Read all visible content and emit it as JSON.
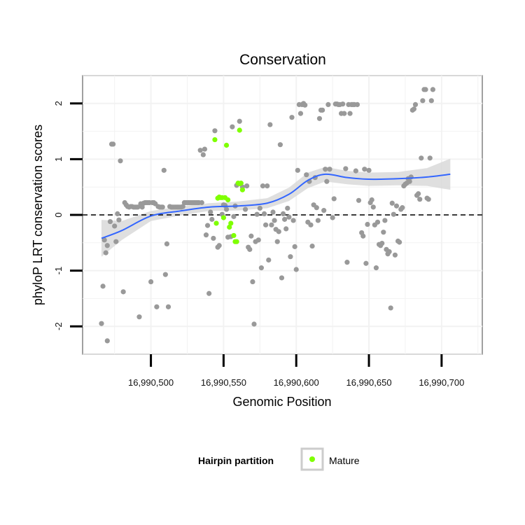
{
  "chart_data": {
    "type": "scatter",
    "title": "Conservation",
    "xlabel": "Genomic Position",
    "ylabel": "phyloP LRT conservation scores",
    "xlim": [
      16990453,
      16990728
    ],
    "ylim": [
      -2.5,
      2.5
    ],
    "x_ticks": [
      16990500,
      16990550,
      16990600,
      16990650,
      16990700
    ],
    "x_tick_labels": [
      "16,990,500",
      "16,990,550",
      "16,990,600",
      "16,990,650",
      "16,990,700"
    ],
    "y_ticks": [
      -2,
      -1,
      0,
      1,
      2
    ],
    "y_tick_labels": [
      "-2",
      "-1",
      "0",
      "1",
      "2"
    ],
    "reference_line": {
      "y": 0,
      "style": "dashed"
    },
    "grid": true,
    "colors": {
      "points": "#999999",
      "mature": "#7FFF00",
      "smooth": "#3366FF",
      "ribbon": "#d9d9d9",
      "reference": "#000000",
      "panel_border": "#808080",
      "grid": "#f2f2f2"
    },
    "legend": {
      "title": "Hairpin partition",
      "placement": "bottom",
      "entries": [
        "Mature"
      ]
    },
    "series": [
      {
        "name": "",
        "points": [
          [
            16990466,
            -1.95
          ],
          [
            16990467,
            -1.28
          ],
          [
            16990468,
            -0.45
          ],
          [
            16990469,
            -0.68
          ],
          [
            16990470,
            -2.26
          ],
          [
            16990470,
            -0.55
          ],
          [
            16990472,
            -0.12
          ],
          [
            16990473,
            1.27
          ],
          [
            16990474,
            1.27
          ],
          [
            16990475,
            -0.2
          ],
          [
            16990476,
            -0.48
          ],
          [
            16990477,
            0.02
          ],
          [
            16990478,
            -0.09
          ],
          [
            16990479,
            0.97
          ],
          [
            16990481,
            -1.38
          ],
          [
            16990482,
            0.22
          ],
          [
            16990483,
            0.18
          ],
          [
            16990484,
            0.15
          ],
          [
            16990485,
            0.14
          ],
          [
            16990486,
            0.15
          ],
          [
            16990487,
            0.15
          ],
          [
            16990488,
            0.14
          ],
          [
            16990489,
            0.14
          ],
          [
            16990490,
            0.14
          ],
          [
            16990491,
            0.14
          ],
          [
            16990492,
            -1.83
          ],
          [
            16990493,
            0.2
          ],
          [
            16990494,
            0.14
          ],
          [
            16990495,
            0.21
          ],
          [
            16990496,
            0.22
          ],
          [
            16990497,
            0.22
          ],
          [
            16990498,
            0.22
          ],
          [
            16990499,
            0.22
          ],
          [
            16990500,
            -1.2
          ],
          [
            16990501,
            0.22
          ],
          [
            16990502,
            0.22
          ],
          [
            16990503,
            0.2
          ],
          [
            16990504,
            -1.65
          ],
          [
            16990505,
            0.15
          ],
          [
            16990506,
            0.14
          ],
          [
            16990507,
            0.14
          ],
          [
            16990508,
            0.14
          ],
          [
            16990509,
            0.8
          ],
          [
            16990510,
            -1.07
          ],
          [
            16990511,
            -0.52
          ],
          [
            16990512,
            -1.65
          ],
          [
            16990513,
            0.15
          ],
          [
            16990514,
            0.14
          ],
          [
            16990515,
            0.14
          ],
          [
            16990516,
            0.14
          ],
          [
            16990517,
            0.14
          ],
          [
            16990518,
            0.14
          ],
          [
            16990519,
            0.14
          ],
          [
            16990520,
            0.14
          ],
          [
            16990521,
            0.14
          ],
          [
            16990522,
            0.15
          ],
          [
            16990523,
            0.22
          ],
          [
            16990524,
            0.22
          ],
          [
            16990525,
            0.22
          ],
          [
            16990526,
            0.22
          ],
          [
            16990527,
            0.22
          ],
          [
            16990528,
            0.22
          ],
          [
            16990529,
            0.22
          ],
          [
            16990530,
            0.22
          ],
          [
            16990531,
            0.22
          ],
          [
            16990532,
            0.22
          ],
          [
            16990533,
            0.22
          ],
          [
            16990534,
            1.16
          ],
          [
            16990535,
            0.22
          ],
          [
            16990536,
            1.08
          ],
          [
            16990537,
            1.18
          ],
          [
            16990538,
            -0.36
          ],
          [
            16990539,
            -0.19
          ],
          [
            16990540,
            -1.41
          ],
          [
            16990541,
            0.05
          ],
          [
            16990542,
            -0.08
          ],
          [
            16990543,
            -0.42
          ],
          [
            16990544,
            1.51
          ],
          [
            16990546,
            -0.58
          ],
          [
            16990547,
            -0.55
          ],
          [
            16990549,
            0.01
          ],
          [
            16990550,
            0.18
          ],
          [
            16990551,
            0.17
          ],
          [
            16990552,
            0.1
          ],
          [
            16990553,
            -0.4
          ],
          [
            16990555,
            -0.39
          ],
          [
            16990556,
            1.58
          ],
          [
            16990557,
            -0.03
          ],
          [
            16990558,
            0.16
          ],
          [
            16990559,
            0.53
          ],
          [
            16990561,
            1.68
          ],
          [
            16990563,
            0.5
          ],
          [
            16990565,
            0.1
          ],
          [
            16990566,
            0.52
          ],
          [
            16990567,
            -0.58
          ],
          [
            16990568,
            -0.62
          ],
          [
            16990569,
            -0.38
          ],
          [
            16990570,
            -1.2
          ],
          [
            16990571,
            -1.96
          ],
          [
            16990572,
            -0.48
          ],
          [
            16990573,
            0.01
          ],
          [
            16990574,
            -0.45
          ],
          [
            16990575,
            0.12
          ],
          [
            16990576,
            -0.95
          ],
          [
            16990577,
            0.52
          ],
          [
            16990578,
            0.02
          ],
          [
            16990579,
            -0.18
          ],
          [
            16990580,
            0.52
          ],
          [
            16990581,
            -0.81
          ],
          [
            16990582,
            1.62
          ],
          [
            16990583,
            -0.18
          ],
          [
            16990584,
            0.05
          ],
          [
            16990585,
            -0.1
          ],
          [
            16990586,
            -0.26
          ],
          [
            16990587,
            -0.48
          ],
          [
            16990588,
            -0.3
          ],
          [
            16990589,
            1.26
          ],
          [
            16990590,
            -1.13
          ],
          [
            16990591,
            0.02
          ],
          [
            16990592,
            -0.08
          ],
          [
            16990593,
            -0.25
          ],
          [
            16990594,
            0.12
          ],
          [
            16990595,
            -0.04
          ],
          [
            16990596,
            -0.75
          ],
          [
            16990597,
            1.75
          ],
          [
            16990598,
            -0.1
          ],
          [
            16990599,
            -0.57
          ],
          [
            16990600,
            -0.98
          ],
          [
            16990601,
            0.8
          ],
          [
            16990602,
            1.98
          ],
          [
            16990603,
            1.82
          ],
          [
            16990604,
            1.98
          ],
          [
            16990605,
            2.0
          ],
          [
            16990606,
            1.97
          ],
          [
            16990607,
            0.72
          ],
          [
            16990608,
            -0.13
          ],
          [
            16990609,
            0.6
          ],
          [
            16990610,
            -0.18
          ],
          [
            16990611,
            -0.56
          ],
          [
            16990612,
            0.18
          ],
          [
            16990613,
            0.67
          ],
          [
            16990614,
            0.13
          ],
          [
            16990615,
            -0.1
          ],
          [
            16990616,
            1.73
          ],
          [
            16990617,
            1.88
          ],
          [
            16990618,
            1.88
          ],
          [
            16990619,
            0.08
          ],
          [
            16990620,
            0.82
          ],
          [
            16990621,
            0.6
          ],
          [
            16990622,
            1.98
          ],
          [
            16990623,
            0.82
          ],
          [
            16990625,
            -0.05
          ],
          [
            16990626,
            0.29
          ],
          [
            16990627,
            1.99
          ],
          [
            16990628,
            1.99
          ],
          [
            16990629,
            1.98
          ],
          [
            16990630,
            1.98
          ],
          [
            16990631,
            1.82
          ],
          [
            16990632,
            1.99
          ],
          [
            16990633,
            1.82
          ],
          [
            16990634,
            0.83
          ],
          [
            16990635,
            -0.85
          ],
          [
            16990636,
            1.98
          ],
          [
            16990637,
            1.82
          ],
          [
            16990638,
            1.98
          ],
          [
            16990639,
            1.98
          ],
          [
            16990640,
            1.98
          ],
          [
            16990641,
            0.79
          ],
          [
            16990642,
            1.98
          ],
          [
            16990643,
            0.26
          ],
          [
            16990645,
            -0.32
          ],
          [
            16990646,
            -0.38
          ],
          [
            16990647,
            0.82
          ],
          [
            16990648,
            -0.87
          ],
          [
            16990649,
            -0.17
          ],
          [
            16990650,
            0.8
          ],
          [
            16990651,
            0.22
          ],
          [
            16990652,
            0.27
          ],
          [
            16990653,
            0.14
          ],
          [
            16990654,
            -0.18
          ],
          [
            16990655,
            -0.95
          ],
          [
            16990656,
            -0.13
          ],
          [
            16990657,
            -0.53
          ],
          [
            16990658,
            -0.55
          ],
          [
            16990659,
            -0.51
          ],
          [
            16990660,
            -0.31
          ],
          [
            16990661,
            -0.1
          ],
          [
            16990662,
            -0.62
          ],
          [
            16990663,
            -0.7
          ],
          [
            16990664,
            -0.66
          ],
          [
            16990665,
            -1.67
          ],
          [
            16990666,
            0.21
          ],
          [
            16990667,
            0.01
          ],
          [
            16990668,
            -0.72
          ],
          [
            16990669,
            0.16
          ],
          [
            16990670,
            -0.47
          ],
          [
            16990671,
            -0.49
          ],
          [
            16990672,
            0.1
          ],
          [
            16990673,
            0.13
          ],
          [
            16990674,
            0.52
          ],
          [
            16990675,
            0.55
          ],
          [
            16990676,
            0.57
          ],
          [
            16990677,
            0.65
          ],
          [
            16990678,
            0.6
          ],
          [
            16990679,
            0.68
          ],
          [
            16990680,
            1.88
          ],
          [
            16990681,
            1.9
          ],
          [
            16990682,
            1.98
          ],
          [
            16990683,
            0.35
          ],
          [
            16990684,
            0.38
          ],
          [
            16990685,
            0.28
          ],
          [
            16990686,
            1.02
          ],
          [
            16990687,
            2.05
          ],
          [
            16990688,
            2.25
          ],
          [
            16990689,
            2.25
          ],
          [
            16990690,
            0.3
          ],
          [
            16990691,
            0.28
          ],
          [
            16990692,
            1.02
          ],
          [
            16990693,
            2.05
          ],
          [
            16990694,
            2.25
          ]
        ]
      },
      {
        "name": "Mature",
        "points": [
          [
            16990544,
            1.35
          ],
          [
            16990545,
            -0.15
          ],
          [
            16990546,
            0.3
          ],
          [
            16990547,
            0.32
          ],
          [
            16990548,
            0.31
          ],
          [
            16990549,
            0.31
          ],
          [
            16990550,
            -0.05
          ],
          [
            16990551,
            0.31
          ],
          [
            16990552,
            1.25
          ],
          [
            16990553,
            0.27
          ],
          [
            16990554,
            -0.22
          ],
          [
            16990555,
            -0.15
          ],
          [
            16990557,
            -0.37
          ],
          [
            16990558,
            -0.48
          ],
          [
            16990559,
            -0.48
          ],
          [
            16990560,
            0.57
          ],
          [
            16990561,
            0.56
          ],
          [
            16990562,
            0.57
          ],
          [
            16990563,
            0.45
          ],
          [
            16990561,
            1.52
          ]
        ]
      }
    ],
    "smooth": {
      "x": [
        16990466,
        16990480,
        16990500,
        16990520,
        16990540,
        16990560,
        16990580,
        16990595,
        16990608,
        16990620,
        16990635,
        16990650,
        16990670,
        16990690,
        16990706
      ],
      "y": [
        -0.42,
        -0.28,
        -0.02,
        0.07,
        0.14,
        0.16,
        0.21,
        0.37,
        0.62,
        0.73,
        0.67,
        0.64,
        0.65,
        0.68,
        0.73
      ],
      "lower": [
        -0.75,
        -0.45,
        -0.11,
        -0.01,
        0.07,
        0.08,
        0.12,
        0.25,
        0.48,
        0.6,
        0.55,
        0.52,
        0.53,
        0.52,
        0.45
      ],
      "upper": [
        -0.09,
        -0.11,
        0.07,
        0.15,
        0.21,
        0.24,
        0.3,
        0.49,
        0.76,
        0.86,
        0.79,
        0.76,
        0.77,
        0.84,
        1.01
      ]
    }
  }
}
